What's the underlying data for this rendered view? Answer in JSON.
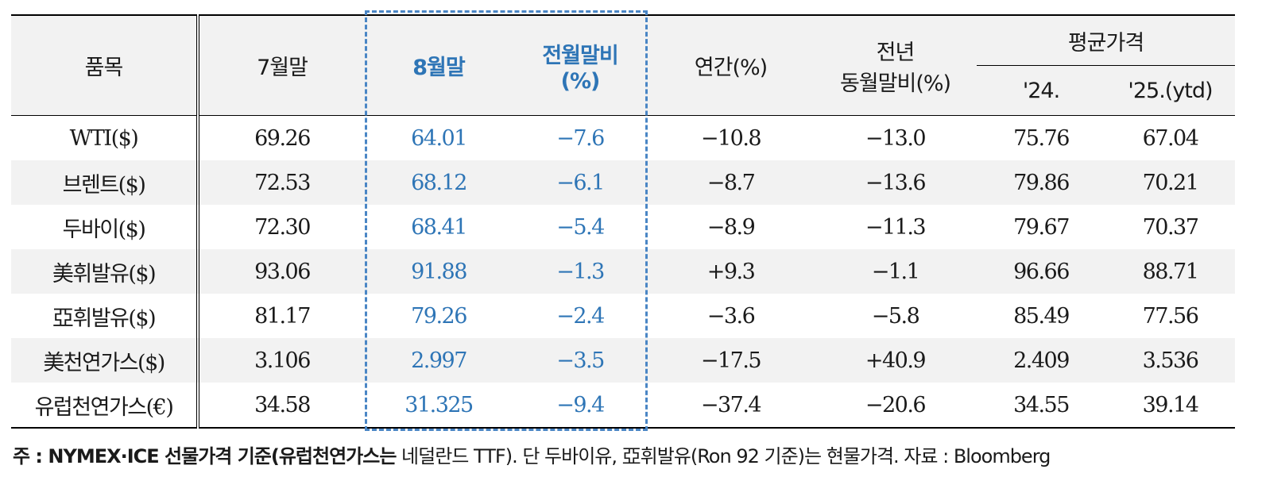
{
  "header": {
    "item": "품목",
    "jul": "7월말",
    "aug": "8월말",
    "mom_line1": "전월말비",
    "mom_line2": "(%)",
    "ytd": "연간(%)",
    "yoy_line1": "전년",
    "yoy_line2": "동월말비(%)",
    "avg": "평균가격",
    "avg24": "'24.",
    "avg25": "'25.(ytd)"
  },
  "rows": [
    {
      "item": "WTI($)",
      "jul": "69.26",
      "aug": "64.01",
      "mom": "−7.6",
      "ytd": "−10.8",
      "yoy": "−13.0",
      "a24": "75.76",
      "a25": "67.04"
    },
    {
      "item": "브렌트($)",
      "jul": "72.53",
      "aug": "68.12",
      "mom": "−6.1",
      "ytd": "−8.7",
      "yoy": "−13.6",
      "a24": "79.86",
      "a25": "70.21"
    },
    {
      "item": "두바이($)",
      "jul": "72.30",
      "aug": "68.41",
      "mom": "−5.4",
      "ytd": "−8.9",
      "yoy": "−11.3",
      "a24": "79.67",
      "a25": "70.37"
    },
    {
      "item": "美휘발유($)",
      "jul": "93.06",
      "aug": "91.88",
      "mom": "−1.3",
      "ytd": "+9.3",
      "yoy": "−1.1",
      "a24": "96.66",
      "a25": "88.71"
    },
    {
      "item": "亞휘발유($)",
      "jul": "81.17",
      "aug": "79.26",
      "mom": "−2.4",
      "ytd": "−3.6",
      "yoy": "−5.8",
      "a24": "85.49",
      "a25": "77.56"
    },
    {
      "item": "美천연가스($)",
      "jul": "3.106",
      "aug": "2.997",
      "mom": "−3.5",
      "ytd": "−17.5",
      "yoy": "+40.9",
      "a24": "2.409",
      "a25": "3.536"
    },
    {
      "item": "유럽천연가스(€)",
      "jul": "34.58",
      "aug": "31.325",
      "mom": "−9.4",
      "ytd": "−37.4",
      "yoy": "−20.6",
      "a24": "34.55",
      "a25": "39.14"
    }
  ],
  "note": {
    "prefix": "주 : NYMEX·ICE 선물가격 기준(유럽천연가스는",
    "rest": " 네덜란드 TTF). 단 두바이유, 亞휘발유(Ron 92 기준)는 현물가격. 자료 : Bloomberg"
  },
  "colors": {
    "highlight": "#2e75b6",
    "shade": "#f2f2f2"
  }
}
